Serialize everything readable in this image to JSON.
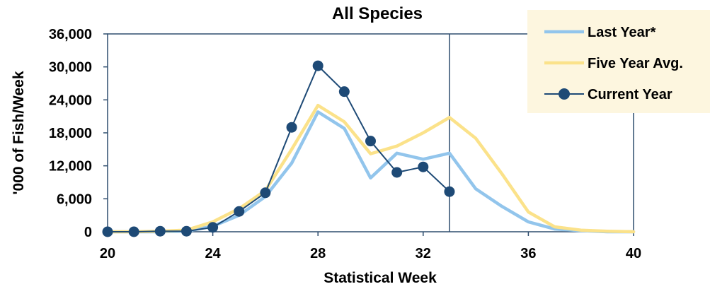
{
  "chart_data": {
    "type": "line",
    "title": "All Species",
    "xlabel": "Statistical Week",
    "ylabel": "'000 of Fish/Week",
    "xlim": [
      20,
      40
    ],
    "ylim": [
      0,
      36000
    ],
    "xticks": [
      "20",
      "24",
      "28",
      "32",
      "36",
      "40"
    ],
    "yticks": [
      "0",
      "6,000",
      "12,000",
      "18,000",
      "24,000",
      "30,000",
      "36,000"
    ],
    "grid": false,
    "legend_position": "top-right",
    "marker_line_week": 33,
    "series": [
      {
        "name": "Last Year*",
        "color": "#92c5ec",
        "x": [
          20,
          21,
          22,
          23,
          24,
          25,
          26,
          27,
          28,
          29,
          30,
          31,
          32,
          33,
          34,
          35,
          36,
          37,
          38,
          39,
          40
        ],
        "values": [
          0,
          0,
          0,
          100,
          1000,
          3000,
          6400,
          12500,
          21800,
          18800,
          9800,
          14300,
          13200,
          14300,
          7800,
          4600,
          1800,
          500,
          200,
          0,
          0
        ]
      },
      {
        "name": "Five Year Avg.",
        "color": "#fbe28a",
        "x": [
          20,
          21,
          22,
          23,
          24,
          25,
          26,
          27,
          28,
          29,
          30,
          31,
          32,
          33,
          34,
          35,
          36,
          37,
          38,
          39,
          40
        ],
        "values": [
          0,
          0,
          100,
          300,
          1800,
          4200,
          7500,
          15000,
          23000,
          20000,
          14200,
          15600,
          18000,
          20800,
          17000,
          10500,
          3600,
          900,
          300,
          100,
          0
        ]
      },
      {
        "name": "Current Year",
        "color": "#1e4a76",
        "x": [
          20,
          21,
          22,
          23,
          24,
          25,
          26,
          27,
          28,
          29,
          30,
          31,
          32,
          33
        ],
        "values": [
          0,
          0,
          100,
          100,
          800,
          3700,
          7100,
          19000,
          30200,
          25500,
          16500,
          10800,
          11800,
          7300
        ]
      }
    ]
  }
}
